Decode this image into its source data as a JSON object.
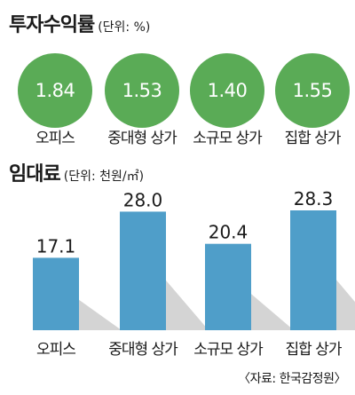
{
  "yield": {
    "title": "투자수익률",
    "unit": "(단위: %)",
    "categories": [
      "오피스",
      "중대형 상가",
      "소규모 상가",
      "집합 상가"
    ],
    "values": [
      "1.84",
      "1.53",
      "1.40",
      "1.55"
    ],
    "circle_color": "#5aab56"
  },
  "rent": {
    "title": "임대료",
    "unit": "(단위: 천원/㎡)",
    "bar_color": "#4f9ec9",
    "shadow_color": "#d4d4d4"
  },
  "chart_data": {
    "type": "bar",
    "categories": [
      "오피스",
      "중대형 상가",
      "소규모 상가",
      "집합 상가"
    ],
    "values": [
      17.1,
      28.0,
      20.4,
      28.3
    ],
    "value_labels": [
      "17.1",
      "28.0",
      "20.4",
      "28.3"
    ],
    "title": "임대료",
    "unit": "(단위: 천원/㎡)",
    "xlabel": "",
    "ylabel": "",
    "ylim": [
      0,
      28.3
    ],
    "grid": false
  },
  "source": "〈자료: 한국감정원〉"
}
